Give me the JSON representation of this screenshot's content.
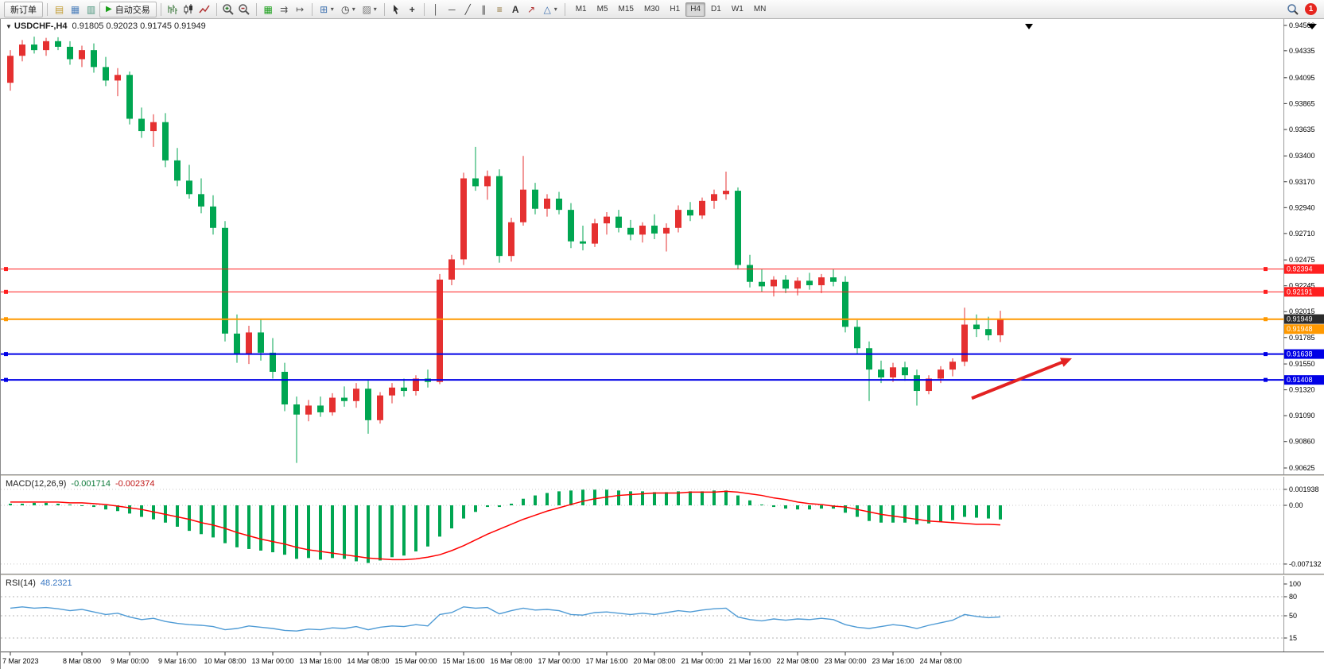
{
  "toolbar": {
    "new_order_label": "新订单",
    "auto_trading_label": "自动交易",
    "timeframes": [
      "M1",
      "M5",
      "M15",
      "M30",
      "H1",
      "H4",
      "D1",
      "W1",
      "MN"
    ],
    "active_timeframe": "H4",
    "notification_count": "1"
  },
  "icons": {
    "profile": "▤",
    "market_watch": "▦",
    "navigator": "▥",
    "play": "▶",
    "tile": "▦",
    "auto_scroll": "⇉",
    "chart_shift": "↦",
    "new_chart": "⊞",
    "period": "◷",
    "template": "▨",
    "crosshair": "+",
    "vline": "│",
    "hline": "─",
    "trendline": "╱",
    "channel": "∥",
    "fibonacci": "≡",
    "text": "A",
    "arrow": "↗",
    "shapes": "△",
    "caret": "▾",
    "expand": "▼"
  },
  "main_chart": {
    "symbol": "USDCHF-,H4",
    "ohlc": "0.91805 0.92023 0.91745 0.91949",
    "price_axis_labels": [
      "0.94560",
      "0.94335",
      "0.94095",
      "0.93865",
      "0.93635",
      "0.93400",
      "0.93170",
      "0.92940",
      "0.92710",
      "0.92475",
      "0.92245",
      "0.92015",
      "0.91785",
      "0.91550",
      "0.91320",
      "0.91090",
      "0.90860",
      "0.90625"
    ]
  },
  "macd_panel": {
    "label": "MACD(12,26,9)",
    "main_value": "-0.001714",
    "signal_value": "-0.002374",
    "axis_labels": [
      "0.001938",
      "0.00",
      "-0.007132"
    ]
  },
  "rsi_panel": {
    "label": "RSI(14)",
    "value": "48.2321",
    "axis_labels": [
      "100",
      "80",
      "50",
      "15"
    ]
  },
  "time_axis": {
    "labels": [
      {
        "i": 0,
        "t": "7 Mar 2023"
      },
      {
        "i": 6,
        "t": "8 Mar 08:00"
      },
      {
        "i": 10,
        "t": "9 Mar 00:00"
      },
      {
        "i": 14,
        "t": "9 Mar 16:00"
      },
      {
        "i": 18,
        "t": "10 Mar 08:00"
      },
      {
        "i": 22,
        "t": "13 Mar 00:00"
      },
      {
        "i": 26,
        "t": "13 Mar 16:00"
      },
      {
        "i": 30,
        "t": "14 Mar 08:00"
      },
      {
        "i": 34,
        "t": "15 Mar 00:00"
      },
      {
        "i": 38,
        "t": "15 Mar 16:00"
      },
      {
        "i": 42,
        "t": "16 Mar 08:00"
      },
      {
        "i": 46,
        "t": "17 Mar 00:00"
      },
      {
        "i": 50,
        "t": "17 Mar 16:00"
      },
      {
        "i": 54,
        "t": "20 Mar 08:00"
      },
      {
        "i": 58,
        "t": "21 Mar 00:00"
      },
      {
        "i": 62,
        "t": "21 Mar 16:00"
      },
      {
        "i": 66,
        "t": "22 Mar 08:00"
      },
      {
        "i": 70,
        "t": "23 Mar 00:00"
      },
      {
        "i": 74,
        "t": "23 Mar 16:00"
      },
      {
        "i": 78,
        "t": "24 Mar 08:00"
      }
    ]
  },
  "chart_data": [
    {
      "type": "candlestick",
      "symbol": "USDCHF",
      "timeframe": "H4",
      "title": "USDCHF-,H4",
      "up_color": "#e53030",
      "down_color": "#00a651",
      "ylim": [
        0.90625,
        0.9456
      ],
      "current_ohlc": {
        "open": 0.91805,
        "high": 0.92023,
        "low": 0.91745,
        "close": 0.91949
      },
      "candles": [
        [
          0.9405,
          0.9434,
          0.9398,
          0.9429
        ],
        [
          0.9429,
          0.9443,
          0.9424,
          0.9439
        ],
        [
          0.9439,
          0.9446,
          0.9431,
          0.9434
        ],
        [
          0.9434,
          0.9445,
          0.9429,
          0.9442
        ],
        [
          0.9442,
          0.94455,
          0.9434,
          0.9437
        ],
        [
          0.9437,
          0.9442,
          0.9421,
          0.9426
        ],
        [
          0.9426,
          0.9438,
          0.9419,
          0.9434
        ],
        [
          0.9434,
          0.944,
          0.9414,
          0.9419
        ],
        [
          0.9419,
          0.9428,
          0.9402,
          0.9407
        ],
        [
          0.9407,
          0.9418,
          0.9393,
          0.9412
        ],
        [
          0.9412,
          0.9415,
          0.9368,
          0.9373
        ],
        [
          0.9373,
          0.9383,
          0.9356,
          0.9362
        ],
        [
          0.9362,
          0.9377,
          0.9348,
          0.937
        ],
        [
          0.937,
          0.9378,
          0.933,
          0.9336
        ],
        [
          0.9336,
          0.9347,
          0.9313,
          0.9318
        ],
        [
          0.9318,
          0.9332,
          0.9302,
          0.9306
        ],
        [
          0.9306,
          0.932,
          0.9289,
          0.9295
        ],
        [
          0.9295,
          0.9305,
          0.927,
          0.9276
        ],
        [
          0.9276,
          0.9282,
          0.9175,
          0.9182
        ],
        [
          0.9182,
          0.9199,
          0.9156,
          0.9164
        ],
        [
          0.9164,
          0.9189,
          0.9155,
          0.9183
        ],
        [
          0.9183,
          0.9195,
          0.9158,
          0.9165
        ],
        [
          0.9165,
          0.9178,
          0.9142,
          0.9148
        ],
        [
          0.9148,
          0.9156,
          0.9113,
          0.9119
        ],
        [
          0.9119,
          0.9126,
          0.9067,
          0.911
        ],
        [
          0.911,
          0.9123,
          0.9104,
          0.9118
        ],
        [
          0.9118,
          0.9126,
          0.9108,
          0.9112
        ],
        [
          0.9112,
          0.9129,
          0.9109,
          0.9125
        ],
        [
          0.9125,
          0.9135,
          0.9117,
          0.9122
        ],
        [
          0.9122,
          0.9138,
          0.9116,
          0.9133
        ],
        [
          0.9133,
          0.914,
          0.9093,
          0.9105
        ],
        [
          0.9105,
          0.913,
          0.9102,
          0.9127
        ],
        [
          0.9127,
          0.9138,
          0.912,
          0.9134
        ],
        [
          0.9134,
          0.9142,
          0.9126,
          0.9131
        ],
        [
          0.9131,
          0.9145,
          0.9127,
          0.9142
        ],
        [
          0.9142,
          0.915,
          0.9134,
          0.9139
        ],
        [
          0.9139,
          0.9235,
          0.9137,
          0.923
        ],
        [
          0.923,
          0.9252,
          0.9225,
          0.9248
        ],
        [
          0.9248,
          0.9325,
          0.9243,
          0.932
        ],
        [
          0.932,
          0.9348,
          0.9309,
          0.9313
        ],
        [
          0.9313,
          0.9327,
          0.9301,
          0.9322
        ],
        [
          0.9322,
          0.9328,
          0.9245,
          0.9251
        ],
        [
          0.9251,
          0.9285,
          0.9246,
          0.9281
        ],
        [
          0.9281,
          0.934,
          0.9278,
          0.931
        ],
        [
          0.931,
          0.9316,
          0.9288,
          0.9293
        ],
        [
          0.9293,
          0.9306,
          0.9286,
          0.9302
        ],
        [
          0.9302,
          0.9308,
          0.9288,
          0.9292
        ],
        [
          0.9292,
          0.9298,
          0.9258,
          0.9264
        ],
        [
          0.9264,
          0.9278,
          0.9256,
          0.9262
        ],
        [
          0.9262,
          0.9284,
          0.9259,
          0.928
        ],
        [
          0.928,
          0.929,
          0.927,
          0.9286
        ],
        [
          0.9286,
          0.9292,
          0.9272,
          0.9276
        ],
        [
          0.9276,
          0.9283,
          0.9265,
          0.927
        ],
        [
          0.927,
          0.9281,
          0.9263,
          0.9278
        ],
        [
          0.9278,
          0.9288,
          0.9266,
          0.9271
        ],
        [
          0.9271,
          0.928,
          0.9255,
          0.9276
        ],
        [
          0.9276,
          0.9296,
          0.9272,
          0.9292
        ],
        [
          0.9292,
          0.9299,
          0.9282,
          0.9287
        ],
        [
          0.9287,
          0.9303,
          0.9284,
          0.93
        ],
        [
          0.93,
          0.931,
          0.9293,
          0.9306
        ],
        [
          0.9306,
          0.9326,
          0.9301,
          0.9309
        ],
        [
          0.9309,
          0.9312,
          0.9239,
          0.9243
        ],
        [
          0.9243,
          0.9252,
          0.9223,
          0.9228
        ],
        [
          0.9228,
          0.9239,
          0.9219,
          0.9224
        ],
        [
          0.9224,
          0.9233,
          0.9215,
          0.923
        ],
        [
          0.923,
          0.9234,
          0.9218,
          0.9222
        ],
        [
          0.9222,
          0.9232,
          0.9216,
          0.9229
        ],
        [
          0.9229,
          0.9236,
          0.9221,
          0.9225
        ],
        [
          0.9225,
          0.9235,
          0.9218,
          0.9232
        ],
        [
          0.9232,
          0.9239,
          0.9224,
          0.9228
        ],
        [
          0.9228,
          0.9233,
          0.9183,
          0.9188
        ],
        [
          0.9188,
          0.9194,
          0.9164,
          0.9169
        ],
        [
          0.9169,
          0.9175,
          0.9122,
          0.915
        ],
        [
          0.915,
          0.9158,
          0.9138,
          0.9143
        ],
        [
          0.9143,
          0.9156,
          0.9139,
          0.9152
        ],
        [
          0.9152,
          0.9157,
          0.914,
          0.9145
        ],
        [
          0.9145,
          0.915,
          0.9118,
          0.9131
        ],
        [
          0.9131,
          0.9145,
          0.9128,
          0.9142
        ],
        [
          0.9142,
          0.9153,
          0.9138,
          0.915
        ],
        [
          0.915,
          0.916,
          0.9144,
          0.9157
        ],
        [
          0.9157,
          0.9205,
          0.9153,
          0.919
        ],
        [
          0.919,
          0.9199,
          0.9179,
          0.9186
        ],
        [
          0.9186,
          0.9197,
          0.9176,
          0.91805
        ],
        [
          0.91805,
          0.92023,
          0.91745,
          0.91949
        ]
      ],
      "horizontal_lines": [
        {
          "price": 0.92394,
          "color": "#ff1f1f",
          "width": 1,
          "label": "0.92394"
        },
        {
          "price": 0.92191,
          "color": "#ff1f1f",
          "width": 1,
          "label": "0.92191"
        },
        {
          "price": 0.91949,
          "color": "#2b2b2b",
          "width": 1,
          "label": "0.91949",
          "role": "bid"
        },
        {
          "price": 0.91948,
          "color": "#ff9900",
          "width": 2,
          "label": "0.91948"
        },
        {
          "price": 0.91638,
          "color": "#0000e6",
          "width": 2,
          "label": "0.91638"
        },
        {
          "price": 0.91408,
          "color": "#0000e6",
          "width": 2,
          "label": "0.91408"
        }
      ],
      "arrow_annotation": {
        "from_bar": 80.6,
        "from_price": 0.91245,
        "to_bar": 89,
        "to_price": 0.916,
        "color": "#e32222"
      }
    },
    {
      "type": "macd",
      "name": "MACD(12,26,9)",
      "ylim": [
        -0.007132,
        0.001938
      ],
      "histogram_color": "#00a651",
      "signal_color": "#ff0000",
      "current_main": -0.001714,
      "current_signal": -0.002374,
      "histogram": [
        0.0002,
        0.0002,
        0.0003,
        0.0003,
        0.0002,
        0.0001,
        0,
        -0.0002,
        -0.0005,
        -0.0007,
        -0.001,
        -0.0014,
        -0.0017,
        -0.0021,
        -0.0026,
        -0.0031,
        -0.0035,
        -0.0039,
        -0.0046,
        -0.0051,
        -0.0053,
        -0.0055,
        -0.0057,
        -0.006,
        -0.0065,
        -0.0064,
        -0.0066,
        -0.0064,
        -0.0065,
        -0.0068,
        -0.007,
        -0.0067,
        -0.0063,
        -0.0061,
        -0.0056,
        -0.005,
        -0.0038,
        -0.0028,
        -0.0016,
        -0.0008,
        -0.0002,
        -0.0002,
        0.0002,
        0.0008,
        0.0012,
        0.0015,
        0.0017,
        0.0018,
        0.0019,
        0.0019,
        0.0019,
        0.0018,
        0.0017,
        0.0017,
        0.0016,
        0.0016,
        0.0017,
        0.0017,
        0.0017,
        0.0018,
        0.0018,
        0.0012,
        0.0006,
        0.0001,
        -0.0002,
        -0.0004,
        -0.0005,
        -0.0005,
        -0.0004,
        -0.0004,
        -0.0009,
        -0.0014,
        -0.0019,
        -0.0021,
        -0.0021,
        -0.0021,
        -0.0023,
        -0.0022,
        -0.002,
        -0.0018,
        -0.0014,
        -0.0015,
        -0.0016,
        -0.001714
      ],
      "signal": [
        0.0004,
        0.0004,
        0.0004,
        0.0004,
        0.0004,
        0.0003,
        0.0003,
        0.0002,
        0.0001,
        -0.0001,
        -0.0003,
        -0.0005,
        -0.0008,
        -0.0011,
        -0.0014,
        -0.0017,
        -0.0021,
        -0.0024,
        -0.0028,
        -0.0033,
        -0.0037,
        -0.0041,
        -0.0044,
        -0.0047,
        -0.0051,
        -0.0054,
        -0.0056,
        -0.0058,
        -0.006,
        -0.0062,
        -0.0064,
        -0.0065,
        -0.0066,
        -0.0066,
        -0.0065,
        -0.0063,
        -0.006,
        -0.0055,
        -0.0049,
        -0.0042,
        -0.0035,
        -0.0029,
        -0.0023,
        -0.0017,
        -0.0012,
        -0.0007,
        -0.0003,
        0.0001,
        0.0005,
        0.0008,
        0.001,
        0.0012,
        0.0013,
        0.0014,
        0.0015,
        0.0015,
        0.0015,
        0.0016,
        0.0016,
        0.0016,
        0.0017,
        0.0016,
        0.0014,
        0.0012,
        0.0009,
        0.0007,
        0.0004,
        0.0002,
        0.0001,
        -0.0001,
        -0.0002,
        -0.0005,
        -0.0008,
        -0.0011,
        -0.0013,
        -0.0015,
        -0.0017,
        -0.0019,
        -0.002,
        -0.0021,
        -0.0022,
        -0.0023,
        -0.0023,
        -0.002374
      ]
    },
    {
      "type": "line",
      "name": "RSI(14)",
      "color": "#4f9bd5",
      "ylim": [
        0,
        100
      ],
      "levels": [
        80,
        50,
        15
      ],
      "current_value": 48.2321,
      "values": [
        62,
        64,
        62,
        63,
        61,
        58,
        60,
        56,
        52,
        54,
        48,
        44,
        46,
        41,
        38,
        36,
        35,
        33,
        28,
        30,
        34,
        32,
        30,
        27,
        26,
        29,
        28,
        31,
        30,
        33,
        28,
        32,
        34,
        33,
        36,
        34,
        52,
        55,
        64,
        62,
        63,
        53,
        58,
        62,
        59,
        60,
        58,
        52,
        51,
        55,
        56,
        54,
        52,
        54,
        52,
        55,
        58,
        56,
        59,
        61,
        62,
        48,
        44,
        42,
        45,
        43,
        45,
        44,
        46,
        44,
        36,
        32,
        30,
        33,
        36,
        34,
        30,
        35,
        39,
        43,
        52,
        49,
        47,
        48.2321
      ]
    }
  ]
}
